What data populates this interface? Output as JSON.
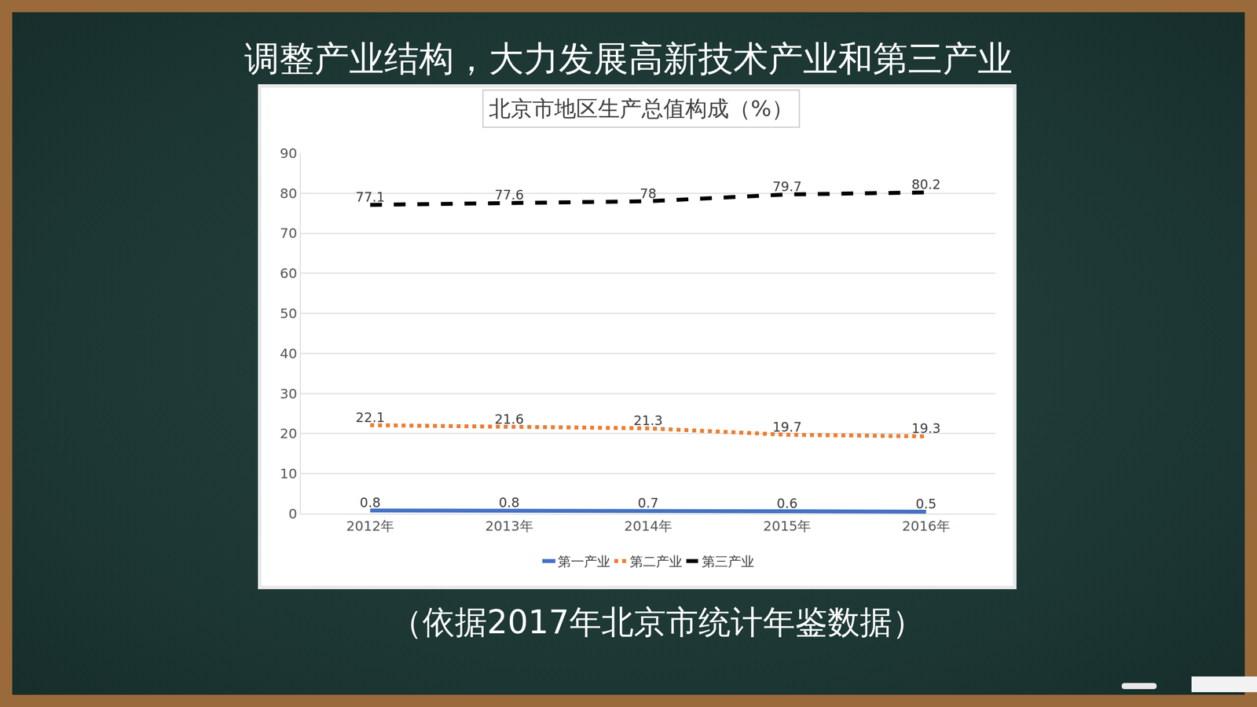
{
  "heading": "调整产业结构，大力发展高新技术产业和第三产业",
  "source": "（依据2017年北京市统计年鉴数据）",
  "chart_data": {
    "type": "line",
    "title": "北京市地区生产总值构成（%）",
    "categories": [
      "2012年",
      "2013年",
      "2014年",
      "2015年",
      "2016年"
    ],
    "series": [
      {
        "name": "第一产业",
        "color": "#4472c4",
        "line_style": "solid",
        "values": [
          0.8,
          0.8,
          0.7,
          0.6,
          0.5
        ]
      },
      {
        "name": "第二产业",
        "color": "#ed7d31",
        "line_style": "dot",
        "values": [
          22.1,
          21.6,
          21.3,
          19.7,
          19.3
        ]
      },
      {
        "name": "第三产业",
        "color": "#000000",
        "line_style": "dash",
        "values": [
          77.1,
          77.6,
          78,
          79.7,
          80.2
        ]
      }
    ],
    "ylim": [
      0,
      90
    ],
    "yticks": [
      0,
      10,
      20,
      30,
      40,
      50,
      60,
      70,
      80,
      90
    ],
    "grid": true,
    "legend": "bottom",
    "data_labels": true
  }
}
